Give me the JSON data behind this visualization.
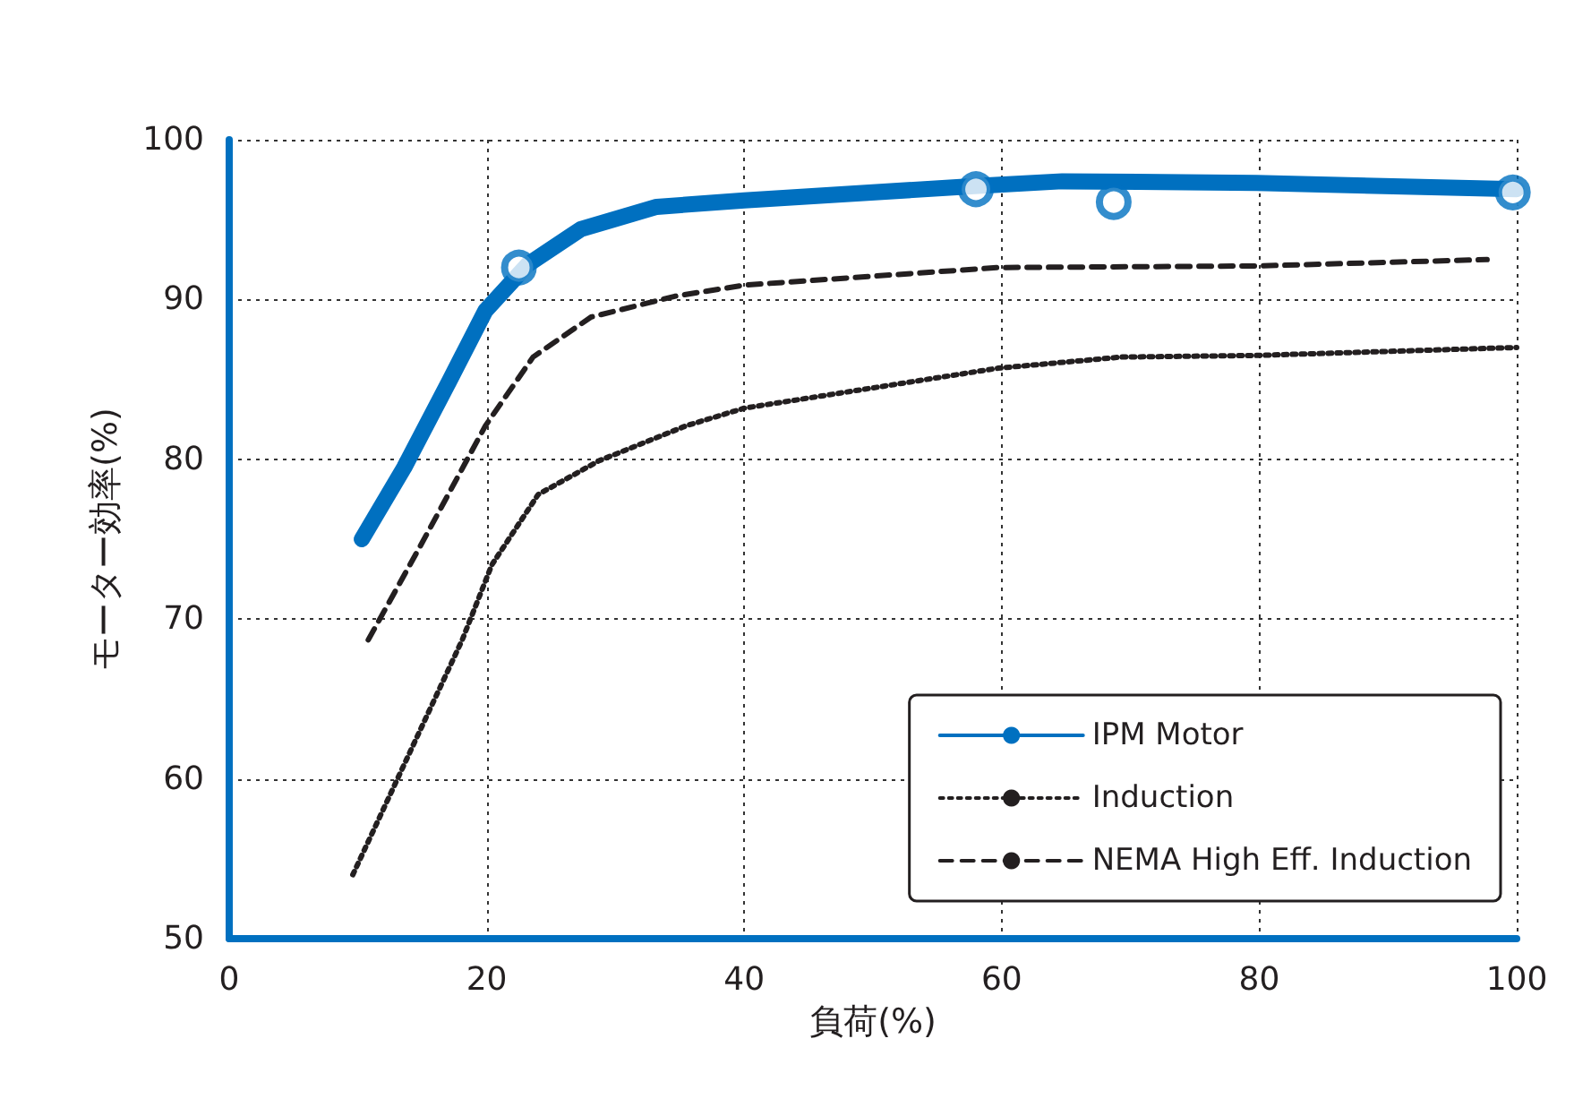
{
  "chart_data": {
    "type": "line",
    "xlabel": "負荷(%)",
    "ylabel": "モーター効率(%)",
    "xlim": [
      0,
      100
    ],
    "xticks": [
      0,
      20,
      40,
      60,
      80,
      100
    ],
    "ylim": [
      50,
      100
    ],
    "yticks": [
      50,
      60,
      70,
      80,
      90,
      100
    ],
    "grid": true,
    "legend": "bottom right",
    "marker": "none",
    "series": [
      {
        "name": "IPM Motor",
        "color": "#0070c0",
        "line_style": "solid",
        "x": [
          10.3,
          13.6,
          17.1,
          19.9,
          23.2,
          27.3,
          33.2,
          40,
          57.9,
          64.7,
          79.8,
          100
        ],
        "values": [
          75.0,
          79.5,
          84.9,
          89.3,
          92.2,
          94.4,
          95.8,
          96.2,
          97.1,
          97.4,
          97.3,
          96.9
        ]
      },
      {
        "name": "Induction",
        "color": "#231f20",
        "line_style": "dotted",
        "x": [
          9.6,
          18.1,
          20.4,
          24,
          28.7,
          35.5,
          40,
          59.7,
          69.3,
          79.8,
          100
        ],
        "values": [
          54.0,
          68.7,
          73.4,
          77.8,
          79.9,
          82.1,
          83.2,
          85.7,
          86.4,
          86.5,
          87.0
        ]
      },
      {
        "name": "NEMA High Eff. Induction",
        "color": "#231f20",
        "line_style": "dashed",
        "x": [
          10.8,
          15,
          19.9,
          23.6,
          28.1,
          34.6,
          40,
          59.7,
          79.8,
          97.7
        ],
        "values": [
          68.7,
          74.8,
          82.1,
          86.4,
          88.9,
          90.2,
          90.9,
          92.0,
          92.1,
          92.5
        ]
      },
      {
        "type": "scatter",
        "marker": "circle",
        "color": "#0070c0",
        "x": [
          22.5,
          58,
          68.7,
          99.7
        ],
        "values": [
          92.0,
          96.9,
          96.1,
          96.7
        ]
      }
    ]
  }
}
